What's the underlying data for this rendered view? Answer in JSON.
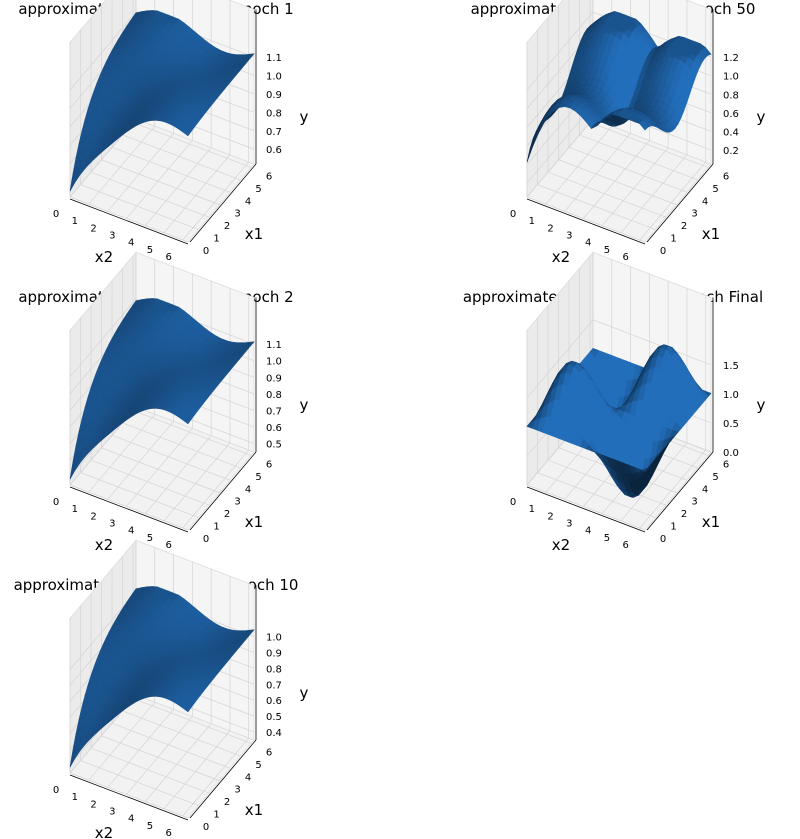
{
  "chart_data": [
    {
      "type": "surface3d",
      "title": "approximated function after epoch 1",
      "xlabel": "x2",
      "ylabel": "x1",
      "zlabel": "y",
      "x_ticks": [
        "0",
        "1",
        "2",
        "3",
        "4",
        "5",
        "6"
      ],
      "y_ticks": [
        "0",
        "1",
        "2",
        "3",
        "4",
        "5",
        "6"
      ],
      "z_ticks": [
        "0.6",
        "0.7",
        "0.8",
        "0.9",
        "1.0",
        "1.1"
      ],
      "xlim": [
        0,
        6.28
      ],
      "ylim": [
        0,
        6.28
      ],
      "zlim": [
        0.52,
        1.15
      ],
      "color": "#2066ad",
      "shape": "smooth"
    },
    {
      "type": "surface3d",
      "title": "approximated function after epoch 50",
      "xlabel": "x2",
      "ylabel": "x1",
      "zlabel": "y",
      "x_ticks": [
        "0",
        "1",
        "2",
        "3",
        "4",
        "5",
        "6"
      ],
      "y_ticks": [
        "0",
        "1",
        "2",
        "3",
        "4",
        "5",
        "6"
      ],
      "z_ticks": [
        "0.2",
        "0.4",
        "0.6",
        "0.8",
        "1.0",
        "1.2"
      ],
      "xlim": [
        0,
        6.28
      ],
      "ylim": [
        0,
        6.28
      ],
      "zlim": [
        0.05,
        1.3
      ],
      "color": "#2066ad",
      "shape": "ridged"
    },
    {
      "type": "surface3d",
      "title": "approximated function after epoch 2",
      "xlabel": "x2",
      "ylabel": "x1",
      "zlabel": "y",
      "x_ticks": [
        "0",
        "1",
        "2",
        "3",
        "4",
        "5",
        "6"
      ],
      "y_ticks": [
        "0",
        "1",
        "2",
        "3",
        "4",
        "5",
        "6"
      ],
      "z_ticks": [
        "0.5",
        "0.6",
        "0.7",
        "0.8",
        "0.9",
        "1.0",
        "1.1"
      ],
      "xlim": [
        0,
        6.28
      ],
      "ylim": [
        0,
        6.28
      ],
      "zlim": [
        0.45,
        1.15
      ],
      "color": "#2066ad",
      "shape": "smooth"
    },
    {
      "type": "surface3d",
      "title": "approximated function after epoch Final",
      "xlabel": "x2",
      "ylabel": "x1",
      "zlabel": "y",
      "x_ticks": [
        "0",
        "1",
        "2",
        "3",
        "4",
        "5",
        "6"
      ],
      "y_ticks": [
        "0",
        "1",
        "2",
        "3",
        "4",
        "5",
        "6"
      ],
      "z_ticks": [
        "0.0",
        "0.5",
        "1.0",
        "1.5"
      ],
      "xlim": [
        0,
        6.28
      ],
      "ylim": [
        0,
        6.28
      ],
      "zlim": [
        0,
        2.0
      ],
      "color": "#2066ad",
      "shape": "peaks"
    },
    {
      "type": "surface3d",
      "title": "approximated function after epoch 10",
      "xlabel": "x2",
      "ylabel": "x1",
      "zlabel": "y",
      "x_ticks": [
        "0",
        "1",
        "2",
        "3",
        "4",
        "5",
        "6"
      ],
      "y_ticks": [
        "0",
        "1",
        "2",
        "3",
        "4",
        "5",
        "6"
      ],
      "z_ticks": [
        "0.4",
        "0.5",
        "0.6",
        "0.7",
        "0.8",
        "0.9",
        "1.0"
      ],
      "xlim": [
        0,
        6.28
      ],
      "ylim": [
        0,
        6.28
      ],
      "zlim": [
        0.35,
        1.08
      ],
      "color": "#2066ad",
      "shape": "smooth"
    }
  ]
}
